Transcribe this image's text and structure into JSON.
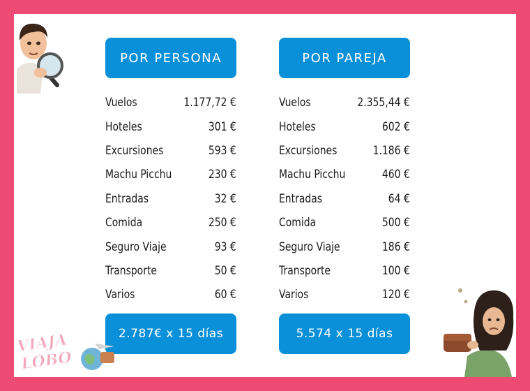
{
  "left": {
    "header": "POR PERSONA",
    "rows": [
      {
        "label": "Vuelos",
        "value": "1.177,72 €"
      },
      {
        "label": "Hoteles",
        "value": "301 €"
      },
      {
        "label": "Excursiones",
        "value": "593 €"
      },
      {
        "label": "Machu Picchu",
        "value": "230 €"
      },
      {
        "label": "Entradas",
        "value": "32 €"
      },
      {
        "label": "Comida",
        "value": "250 €"
      },
      {
        "label": "Seguro Viaje",
        "value": "93 €"
      },
      {
        "label": "Transporte",
        "value": "50 €"
      },
      {
        "label": "Varios",
        "value": "60 €"
      }
    ],
    "total": "2.787€ x 15 días"
  },
  "right": {
    "header": "POR PAREJA",
    "rows": [
      {
        "label": "Vuelos",
        "value": "2.355,44 €"
      },
      {
        "label": "Hoteles",
        "value": "602 €"
      },
      {
        "label": "Excursiones",
        "value": "1.186 €"
      },
      {
        "label": "Machu Picchu",
        "value": "460 €"
      },
      {
        "label": "Entradas",
        "value": "64 €"
      },
      {
        "label": "Comida",
        "value": "500 €"
      },
      {
        "label": "Seguro Viaje",
        "value": "186 €"
      },
      {
        "label": "Transporte",
        "value": "100 €"
      },
      {
        "label": "Varios",
        "value": "120 €"
      }
    ],
    "total": "5.574 x 15 días"
  },
  "logo": {
    "text": "VIAJA LOBO"
  },
  "colors": {
    "frame": "#ee4b74",
    "button": "#0a8fd9",
    "text": "#1a1a1a"
  }
}
